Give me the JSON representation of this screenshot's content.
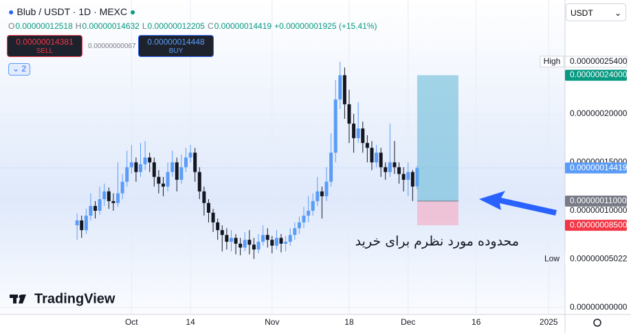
{
  "header": {
    "symbol": "Blub / USDT · 1D · MEXC",
    "ohlc": [
      {
        "key": "O",
        "value": "0.00000012518"
      },
      {
        "key": "H",
        "value": "0.00000014632"
      },
      {
        "key": "L",
        "value": "0.00000012205"
      },
      {
        "key": "C",
        "value": "0.00000014419"
      }
    ],
    "change": "+0.00000001925 (+15.41%)"
  },
  "trade": {
    "sell_price": "0.00000014381",
    "sell": "SELL",
    "spread": "0.00000000067",
    "buy_price": "0.00000014448",
    "buy": "BUY"
  },
  "indicator_count": "2",
  "currency": "USDT",
  "logo": "TradingView",
  "chart_data": {
    "type": "candlestick",
    "up_color": "#5b9cf6",
    "down_color": "#131722",
    "x": [
      0,
      1,
      2,
      3,
      4,
      5,
      6,
      7,
      8,
      9,
      10,
      11,
      12,
      13,
      14,
      15,
      16,
      17,
      18,
      19,
      20,
      21,
      22,
      23,
      24,
      25,
      26,
      27,
      28,
      29,
      30,
      31,
      32,
      33,
      34,
      35,
      36,
      37,
      38,
      39,
      40,
      41,
      42,
      43,
      44,
      45,
      46,
      47,
      48,
      49,
      50,
      51,
      52,
      53,
      54,
      55,
      56,
      57,
      58,
      59,
      60,
      61,
      62,
      63,
      64,
      65,
      66,
      67,
      68,
      69,
      70,
      71,
      72,
      73,
      74,
      75
    ],
    "open": [
      8.5e-08,
      9e-08,
      8e-08,
      9.5e-08,
      1.05e-07,
      1e-07,
      1.12e-07,
      1.2e-07,
      1.1e-07,
      1.08e-07,
      1.18e-07,
      1.3e-07,
      1.45e-07,
      1.5e-07,
      1.4e-07,
      1.48e-07,
      1.55e-07,
      1.5e-07,
      1.35e-07,
      1.28e-07,
      1.25e-07,
      1.4e-07,
      1.5e-07,
      1.32e-07,
      1.45e-07,
      1.55e-07,
      1.6e-07,
      1.4e-07,
      1.2e-07,
      1.08e-07,
      9.8e-08,
      8.8e-08,
      8e-08,
      7.5e-08,
      6.8e-08,
      7.2e-08,
      6.6e-08,
      6.2e-08,
      7e-08,
      6.5e-08,
      6e-08,
      6.8e-08,
      7.5e-08,
      7e-08,
      6.4e-08,
      7.2e-08,
      6.6e-08,
      6.8e-08,
      7.5e-08,
      8.2e-08,
      8.8e-08,
      9.5e-08,
      1e-07,
      1.1e-07,
      1.2e-07,
      1.15e-07,
      1.3e-07,
      1.6e-07,
      2.15e-07,
      2.4e-07,
      2.1e-07,
      1.9e-07,
      1.75e-07,
      1.85e-07,
      1.7e-07,
      1.65e-07,
      1.5e-07,
      1.6e-07,
      1.45e-07,
      1.4e-07,
      1.5e-07,
      1.45e-07,
      1.38e-07,
      1.32e-07,
      1.4e-07,
      1.2518e-07
    ],
    "high": [
      9.7e-08,
      9.5e-08,
      1.02e-07,
      1.18e-07,
      1.1e-07,
      1.25e-07,
      1.28e-07,
      1.24e-07,
      1.18e-07,
      1.5e-07,
      1.38e-07,
      1.62e-07,
      1.68e-07,
      1.55e-07,
      1.7e-07,
      1.72e-07,
      1.6e-07,
      1.55e-07,
      1.42e-07,
      1.35e-07,
      1.5e-07,
      1.62e-07,
      1.55e-07,
      1.58e-07,
      1.65e-07,
      1.68e-07,
      1.65e-07,
      1.45e-07,
      1.25e-07,
      1.12e-07,
      1.02e-07,
      9.2e-08,
      8.5e-08,
      8.2e-08,
      8e-08,
      7.6e-08,
      7.2e-08,
      7.8e-08,
      8e-08,
      7.2e-08,
      7.6e-08,
      8.5e-08,
      8.2e-08,
      7.4e-08,
      8e-08,
      7.6e-08,
      7.4e-08,
      8.2e-08,
      8.8e-08,
      9.4e-08,
      1.04e-07,
      1.15e-07,
      1.18e-07,
      1.35e-07,
      1.25e-07,
      1.45e-07,
      1.8e-07,
      2.35e-07,
      2.54e-07,
      2.48e-07,
      2.25e-07,
      2e-07,
      2.12e-07,
      1.92e-07,
      1.78e-07,
      1.72e-07,
      1.68e-07,
      1.65e-07,
      1.5e-07,
      1.9e-07,
      1.72e-07,
      1.5e-07,
      1.45e-07,
      1.5e-07,
      1.42e-07,
      1.4632e-07
    ],
    "low": [
      7e-08,
      7.2e-08,
      7.6e-08,
      9e-08,
      9.2e-08,
      9.6e-08,
      1.05e-07,
      1.02e-07,
      1e-07,
      1.04e-07,
      1.12e-07,
      1.25e-07,
      1.38e-07,
      1.3e-07,
      1.35e-07,
      1.42e-07,
      1.4e-07,
      1.25e-07,
      1.18e-07,
      1.15e-07,
      1.2e-07,
      1.35e-07,
      1.2e-07,
      1.28e-07,
      1.4e-07,
      1.5e-07,
      1.3e-07,
      1.12e-07,
      9.5e-08,
      8.8e-08,
      7.8e-08,
      7e-08,
      5.8e-08,
      6e-08,
      5.8e-08,
      5.5e-08,
      5.4e-08,
      5.8e-08,
      5.5e-08,
      5.022e-08,
      5.6e-08,
      6.4e-08,
      6.2e-08,
      5.6e-08,
      6e-08,
      5.7e-08,
      5.8e-08,
      6.4e-08,
      7e-08,
      7.6e-08,
      8.2e-08,
      8.8e-08,
      9.5e-08,
      1.05e-07,
      9.2e-08,
      1.1e-07,
      1.25e-07,
      1.5e-07,
      2.05e-07,
      1.95e-07,
      1.7e-07,
      1.6e-07,
      1.7e-07,
      1.6e-07,
      1.5e-07,
      1.42e-07,
      1.45e-07,
      1.35e-07,
      1.32e-07,
      1.35e-07,
      1.38e-07,
      1.28e-07,
      1.2e-07,
      1.15e-07,
      1.1e-07,
      1.2205e-07
    ],
    "close": [
      9e-08,
      8e-08,
      9.5e-08,
      1.05e-07,
      1e-07,
      1.12e-07,
      1.2e-07,
      1.1e-07,
      1.08e-07,
      1.18e-07,
      1.3e-07,
      1.45e-07,
      1.5e-07,
      1.4e-07,
      1.48e-07,
      1.55e-07,
      1.5e-07,
      1.35e-07,
      1.28e-07,
      1.25e-07,
      1.4e-07,
      1.5e-07,
      1.32e-07,
      1.45e-07,
      1.55e-07,
      1.6e-07,
      1.4e-07,
      1.2e-07,
      1.08e-07,
      9.8e-08,
      8.8e-08,
      8e-08,
      7.5e-08,
      6.8e-08,
      7.2e-08,
      6.6e-08,
      6.2e-08,
      7e-08,
      6.5e-08,
      6e-08,
      6.8e-08,
      7.5e-08,
      7e-08,
      6.4e-08,
      7.2e-08,
      6.6e-08,
      6.8e-08,
      7.5e-08,
      8.2e-08,
      8.8e-08,
      9.5e-08,
      1e-07,
      1.1e-07,
      1.2e-07,
      1.15e-07,
      1.3e-07,
      1.6e-07,
      2.15e-07,
      2.4e-07,
      2.1e-07,
      1.9e-07,
      1.75e-07,
      1.85e-07,
      1.7e-07,
      1.65e-07,
      1.5e-07,
      1.6e-07,
      1.45e-07,
      1.4e-07,
      1.5e-07,
      1.45e-07,
      1.38e-07,
      1.32e-07,
      1.4e-07,
      1.25e-07,
      1.4419e-07
    ],
    "xlim": [
      -17,
      107.6
    ],
    "ylim": [
      -7.1e-09,
      3.177e-07
    ],
    "xticks": [
      {
        "value": 12,
        "label": "Oct"
      },
      {
        "value": 25,
        "label": "14"
      },
      {
        "value": 43,
        "label": "Nov"
      },
      {
        "value": 60,
        "label": "18"
      },
      {
        "value": 73,
        "label": "Dec"
      },
      {
        "value": 88,
        "label": "16"
      },
      {
        "value": 104,
        "label": "2025"
      }
    ],
    "yticks": [
      {
        "value": 0,
        "label": "0.00000000000"
      },
      {
        "value": 1e-07,
        "label": "0.00000010000"
      },
      {
        "value": 1.5e-07,
        "label": "0.00000015000"
      },
      {
        "value": 2e-07,
        "label": "0.00000020000"
      }
    ],
    "grid": true,
    "price_labels": [
      {
        "value": 2.54e-07,
        "label": "0.00000025400",
        "tag": "High"
      },
      {
        "value": 2.4e-07,
        "label": "0.00000024000",
        "color": "#089981"
      },
      {
        "value": 1.4419e-07,
        "label": "0.00000014419",
        "color": "#5b9cf6"
      },
      {
        "value": 1.1e-07,
        "label": "0.00000011000",
        "color": "#787b86"
      },
      {
        "value": 8.5e-08,
        "label": "0.00000008500",
        "color": "#f23645"
      },
      {
        "value": 5.022e-08,
        "label": "0.00000005022",
        "tag": "Low"
      }
    ],
    "annotation": "محدوده مورد نظرم برای خرید"
  }
}
